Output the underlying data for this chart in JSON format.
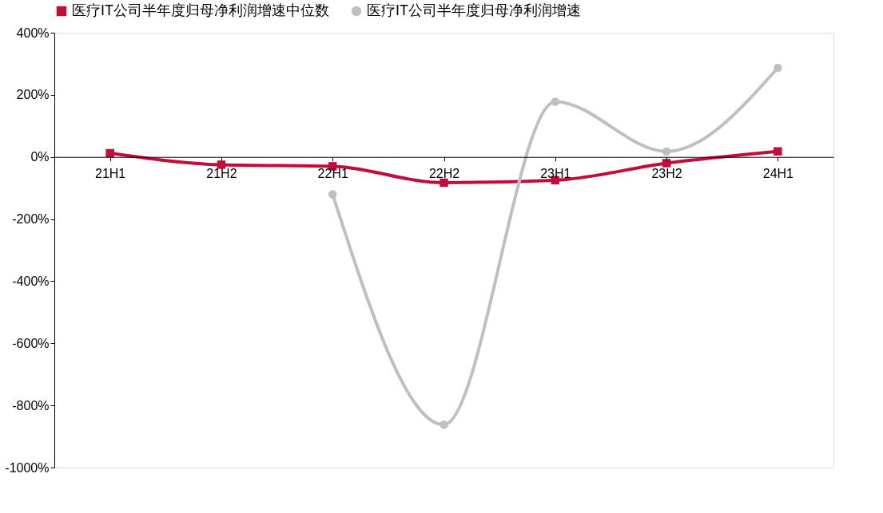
{
  "chart_data": {
    "type": "line",
    "categories": [
      "21H1",
      "21H2",
      "22H1",
      "22H2",
      "23H1",
      "23H2",
      "24H1"
    ],
    "series": [
      {
        "name": "医疗IT公司半年度归母净利润增速中位数",
        "color": "#c00d3b",
        "marker": "square",
        "values": [
          12,
          -25,
          -30,
          -83,
          -75,
          -20,
          18
        ]
      },
      {
        "name": "医疗IT公司半年度归母净利润增速",
        "color": "#bfbfbf",
        "marker": "circle",
        "values": [
          null,
          null,
          -120,
          -862,
          178,
          18,
          287
        ]
      }
    ],
    "ylim": [
      -1000,
      400
    ],
    "yticks": [
      {
        "value": -1000,
        "label": "-1000%"
      },
      {
        "value": -800,
        "label": "-800%"
      },
      {
        "value": -600,
        "label": "-600%"
      },
      {
        "value": -400,
        "label": "-400%"
      },
      {
        "value": -200,
        "label": "-200%"
      },
      {
        "value": 0,
        "label": "0%"
      },
      {
        "value": 200,
        "label": "200%"
      },
      {
        "value": 400,
        "label": "400%"
      }
    ],
    "grid": false,
    "legend": "top",
    "line_style": "solid"
  }
}
